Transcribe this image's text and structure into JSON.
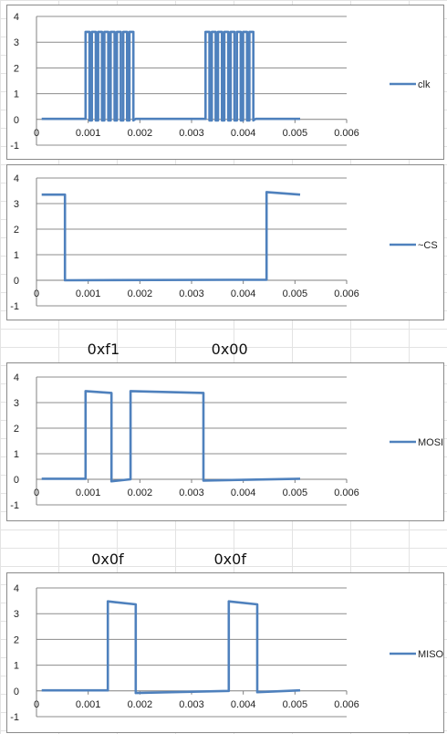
{
  "chart_data": [
    {
      "type": "line",
      "title": "",
      "xlabel": "",
      "ylabel": "",
      "xlim": [
        0,
        0.006
      ],
      "ylim": [
        -1,
        4
      ],
      "x_ticks": [
        "0",
        "0.001",
        "0.002",
        "0.003",
        "0.004",
        "0.005",
        "0.006"
      ],
      "y_ticks": [
        "-1",
        "0",
        "1",
        "2",
        "3",
        "4"
      ],
      "grid": "horizontal",
      "legend": "right",
      "series": [
        {
          "name": "clk",
          "color": "#4f81bd",
          "pattern": "clock",
          "x_start": 0.0001,
          "x_end": 0.0051,
          "low": 0.02,
          "high": 3.4,
          "bursts": [
            {
              "start": 0.00095,
              "end": 0.00192,
              "pulses": 8
            },
            {
              "start": 0.00327,
              "end": 0.00424,
              "pulses": 8
            }
          ]
        }
      ]
    },
    {
      "type": "line",
      "title": "",
      "xlabel": "",
      "ylabel": "",
      "xlim": [
        0,
        0.006
      ],
      "ylim": [
        -1,
        4
      ],
      "x_ticks": [
        "0",
        "0.001",
        "0.002",
        "0.003",
        "0.004",
        "0.005",
        "0.006"
      ],
      "y_ticks": [
        "-1",
        "0",
        "1",
        "2",
        "3",
        "4"
      ],
      "grid": "horizontal",
      "legend": "right",
      "series": [
        {
          "name": "~CS",
          "color": "#4f81bd",
          "pattern": "steps",
          "x": [
            0.0001,
            0.00055,
            0.00055,
            0.00445,
            0.00445,
            0.0051
          ],
          "y": [
            3.35,
            3.35,
            0.0,
            0.02,
            3.45,
            3.35
          ]
        }
      ]
    },
    {
      "type": "line",
      "title": "",
      "xlabel": "",
      "ylabel": "",
      "xlim": [
        0,
        0.006
      ],
      "ylim": [
        -1,
        4
      ],
      "x_ticks": [
        "0",
        "0.001",
        "0.002",
        "0.003",
        "0.004",
        "0.005",
        "0.006"
      ],
      "y_ticks": [
        "-1",
        "0",
        "1",
        "2",
        "3",
        "4"
      ],
      "grid": "horizontal",
      "legend": "right",
      "annotations": [
        {
          "text": "0xf1",
          "x": 0.0013
        },
        {
          "text": "0x00",
          "x": 0.0037
        }
      ],
      "series": [
        {
          "name": "MOSI",
          "color": "#4f81bd",
          "pattern": "steps",
          "x": [
            0.0001,
            0.00095,
            0.00095,
            0.00145,
            0.00145,
            0.00182,
            0.00182,
            0.00323,
            0.00323,
            0.0051
          ],
          "y": [
            0.02,
            0.02,
            3.45,
            3.38,
            -0.08,
            0.0,
            3.45,
            3.38,
            -0.05,
            0.02
          ]
        }
      ]
    },
    {
      "type": "line",
      "title": "",
      "xlabel": "",
      "ylabel": "",
      "xlim": [
        0,
        0.006
      ],
      "ylim": [
        -1,
        4
      ],
      "x_ticks": [
        "0",
        "0.001",
        "0.002",
        "0.003",
        "0.004",
        "0.005",
        "0.006"
      ],
      "y_ticks": [
        "-1",
        "0",
        "1",
        "2",
        "3",
        "4"
      ],
      "grid": "horizontal",
      "legend": "right",
      "annotations": [
        {
          "text": "0x0f",
          "x": 0.00138
        },
        {
          "text": "0x0f",
          "x": 0.00375
        }
      ],
      "series": [
        {
          "name": "MISO",
          "color": "#4f81bd",
          "pattern": "steps",
          "x": [
            0.0001,
            0.00138,
            0.00138,
            0.00192,
            0.00192,
            0.00372,
            0.00372,
            0.00427,
            0.00427,
            0.0051
          ],
          "y": [
            0.02,
            0.02,
            3.48,
            3.36,
            -0.08,
            0.0,
            3.48,
            3.36,
            -0.05,
            0.02
          ]
        }
      ]
    }
  ]
}
